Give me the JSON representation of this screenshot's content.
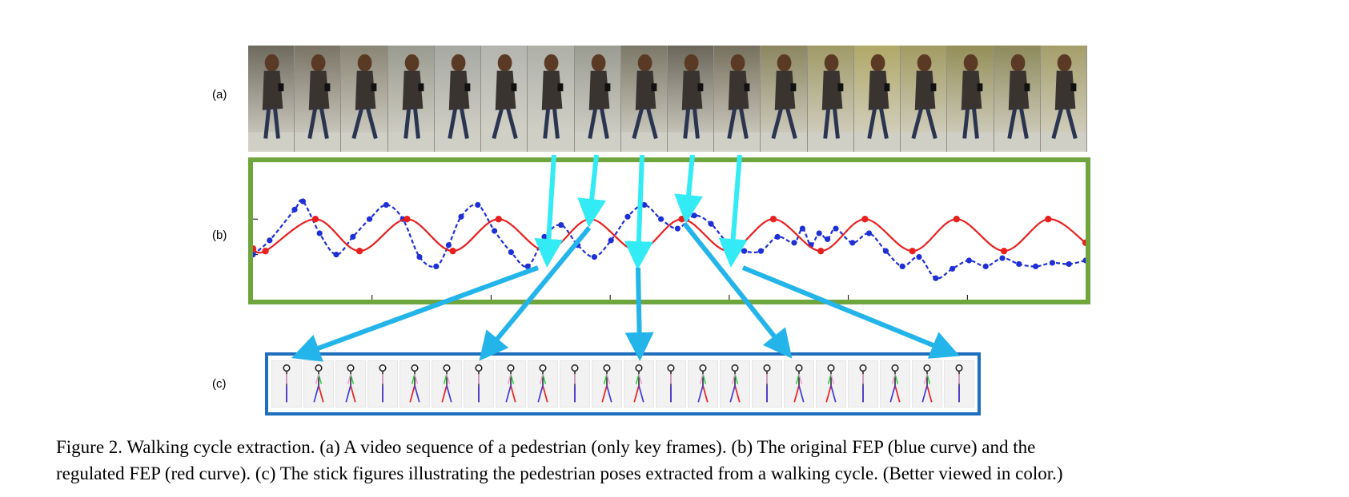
{
  "panels": {
    "a": "(a)",
    "b": "(b)",
    "c": "(c)"
  },
  "caption": {
    "line1": "Figure 2. Walking cycle extraction. (a) A video sequence of a pedestrian (only key frames). (b) The original FEP (blue curve) and the",
    "line2": "regulated FEP (red curve). (c) The stick figures illustrating the pedestrian poses extracted from a walking cycle. (Better viewed in color.)"
  },
  "colors": {
    "original_fep": "#1f2fd6",
    "regulated_fep": "#e8201f",
    "arrow": "#23b4ea",
    "arrow_top": "#33ebf5",
    "plot_frame": "#6fa53d",
    "stick_frame": "#1f6fbf"
  },
  "filmstrip": {
    "frame_count": 18
  },
  "stick_figures": {
    "count": 22
  },
  "chart_data": {
    "type": "line",
    "title": "",
    "xlabel": "",
    "ylabel": "",
    "xlim": [
      0,
      100
    ],
    "ylim": [
      0,
      100
    ],
    "grid": false,
    "series": [
      {
        "name": "original FEP (blue curve)",
        "color": "#1f2fd6",
        "style": "dashed-markers",
        "x": [
          0,
          2,
          5,
          6,
          8,
          10,
          12,
          14,
          16,
          18,
          20,
          22,
          23.5,
          25,
          27,
          29,
          31,
          33,
          35,
          37,
          39,
          41,
          43,
          45,
          47,
          49,
          51,
          53,
          55,
          57,
          59,
          61,
          63,
          65,
          66,
          67,
          68,
          69,
          70,
          72,
          74,
          76,
          78,
          80,
          82,
          84,
          86,
          88,
          90,
          92,
          94,
          96,
          98,
          100
        ],
        "y": [
          30,
          42,
          68,
          75,
          48,
          30,
          45,
          60,
          72,
          60,
          28,
          20,
          38,
          62,
          72,
          50,
          32,
          20,
          45,
          55,
          38,
          28,
          42,
          62,
          72,
          60,
          52,
          63,
          56,
          40,
          33,
          33,
          45,
          40,
          52,
          38,
          48,
          43,
          52,
          40,
          48,
          33,
          20,
          28,
          10,
          18,
          25,
          20,
          27,
          22,
          20,
          23,
          22,
          25
        ]
      },
      {
        "name": "regulated FEP (red curve)",
        "color": "#e8201f",
        "style": "solid-markers",
        "x": [
          0,
          1.5,
          7.5,
          12.8,
          18.5,
          24,
          29.5,
          35.2,
          40.5,
          46.2,
          51.5,
          57.1,
          62.5,
          68.2,
          73.5,
          79.2,
          84.5,
          90.2,
          95.5,
          100
        ],
        "y": [
          35,
          33,
          60,
          33,
          60,
          33,
          60,
          33,
          60,
          33,
          60,
          33,
          60,
          33,
          60,
          33,
          60,
          33,
          60,
          40
        ]
      }
    ]
  }
}
